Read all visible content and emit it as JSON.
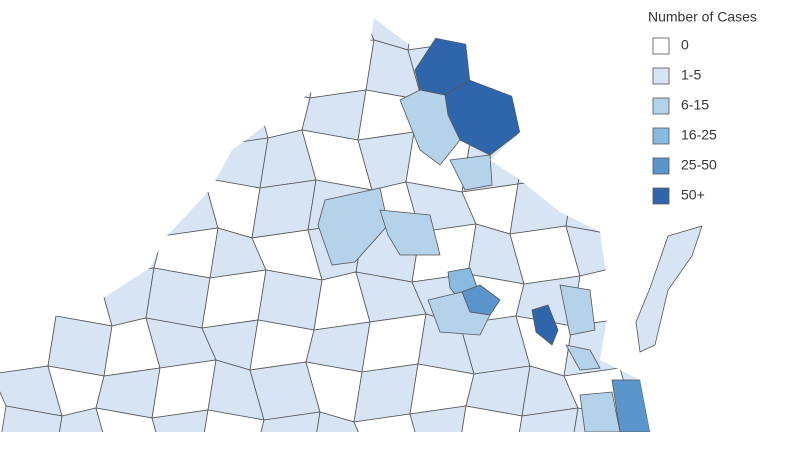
{
  "legend": {
    "title": "Number of Cases",
    "items": [
      {
        "label": "0",
        "color": "#ffffff"
      },
      {
        "label": "1-5",
        "color": "#d6e4f4"
      },
      {
        "label": "6-15",
        "color": "#b4d2ea"
      },
      {
        "label": "16-25",
        "color": "#89badf"
      },
      {
        "label": "25-50",
        "color": "#5a96cb"
      },
      {
        "label": "50+",
        "color": "#2f66ab"
      }
    ]
  }
}
